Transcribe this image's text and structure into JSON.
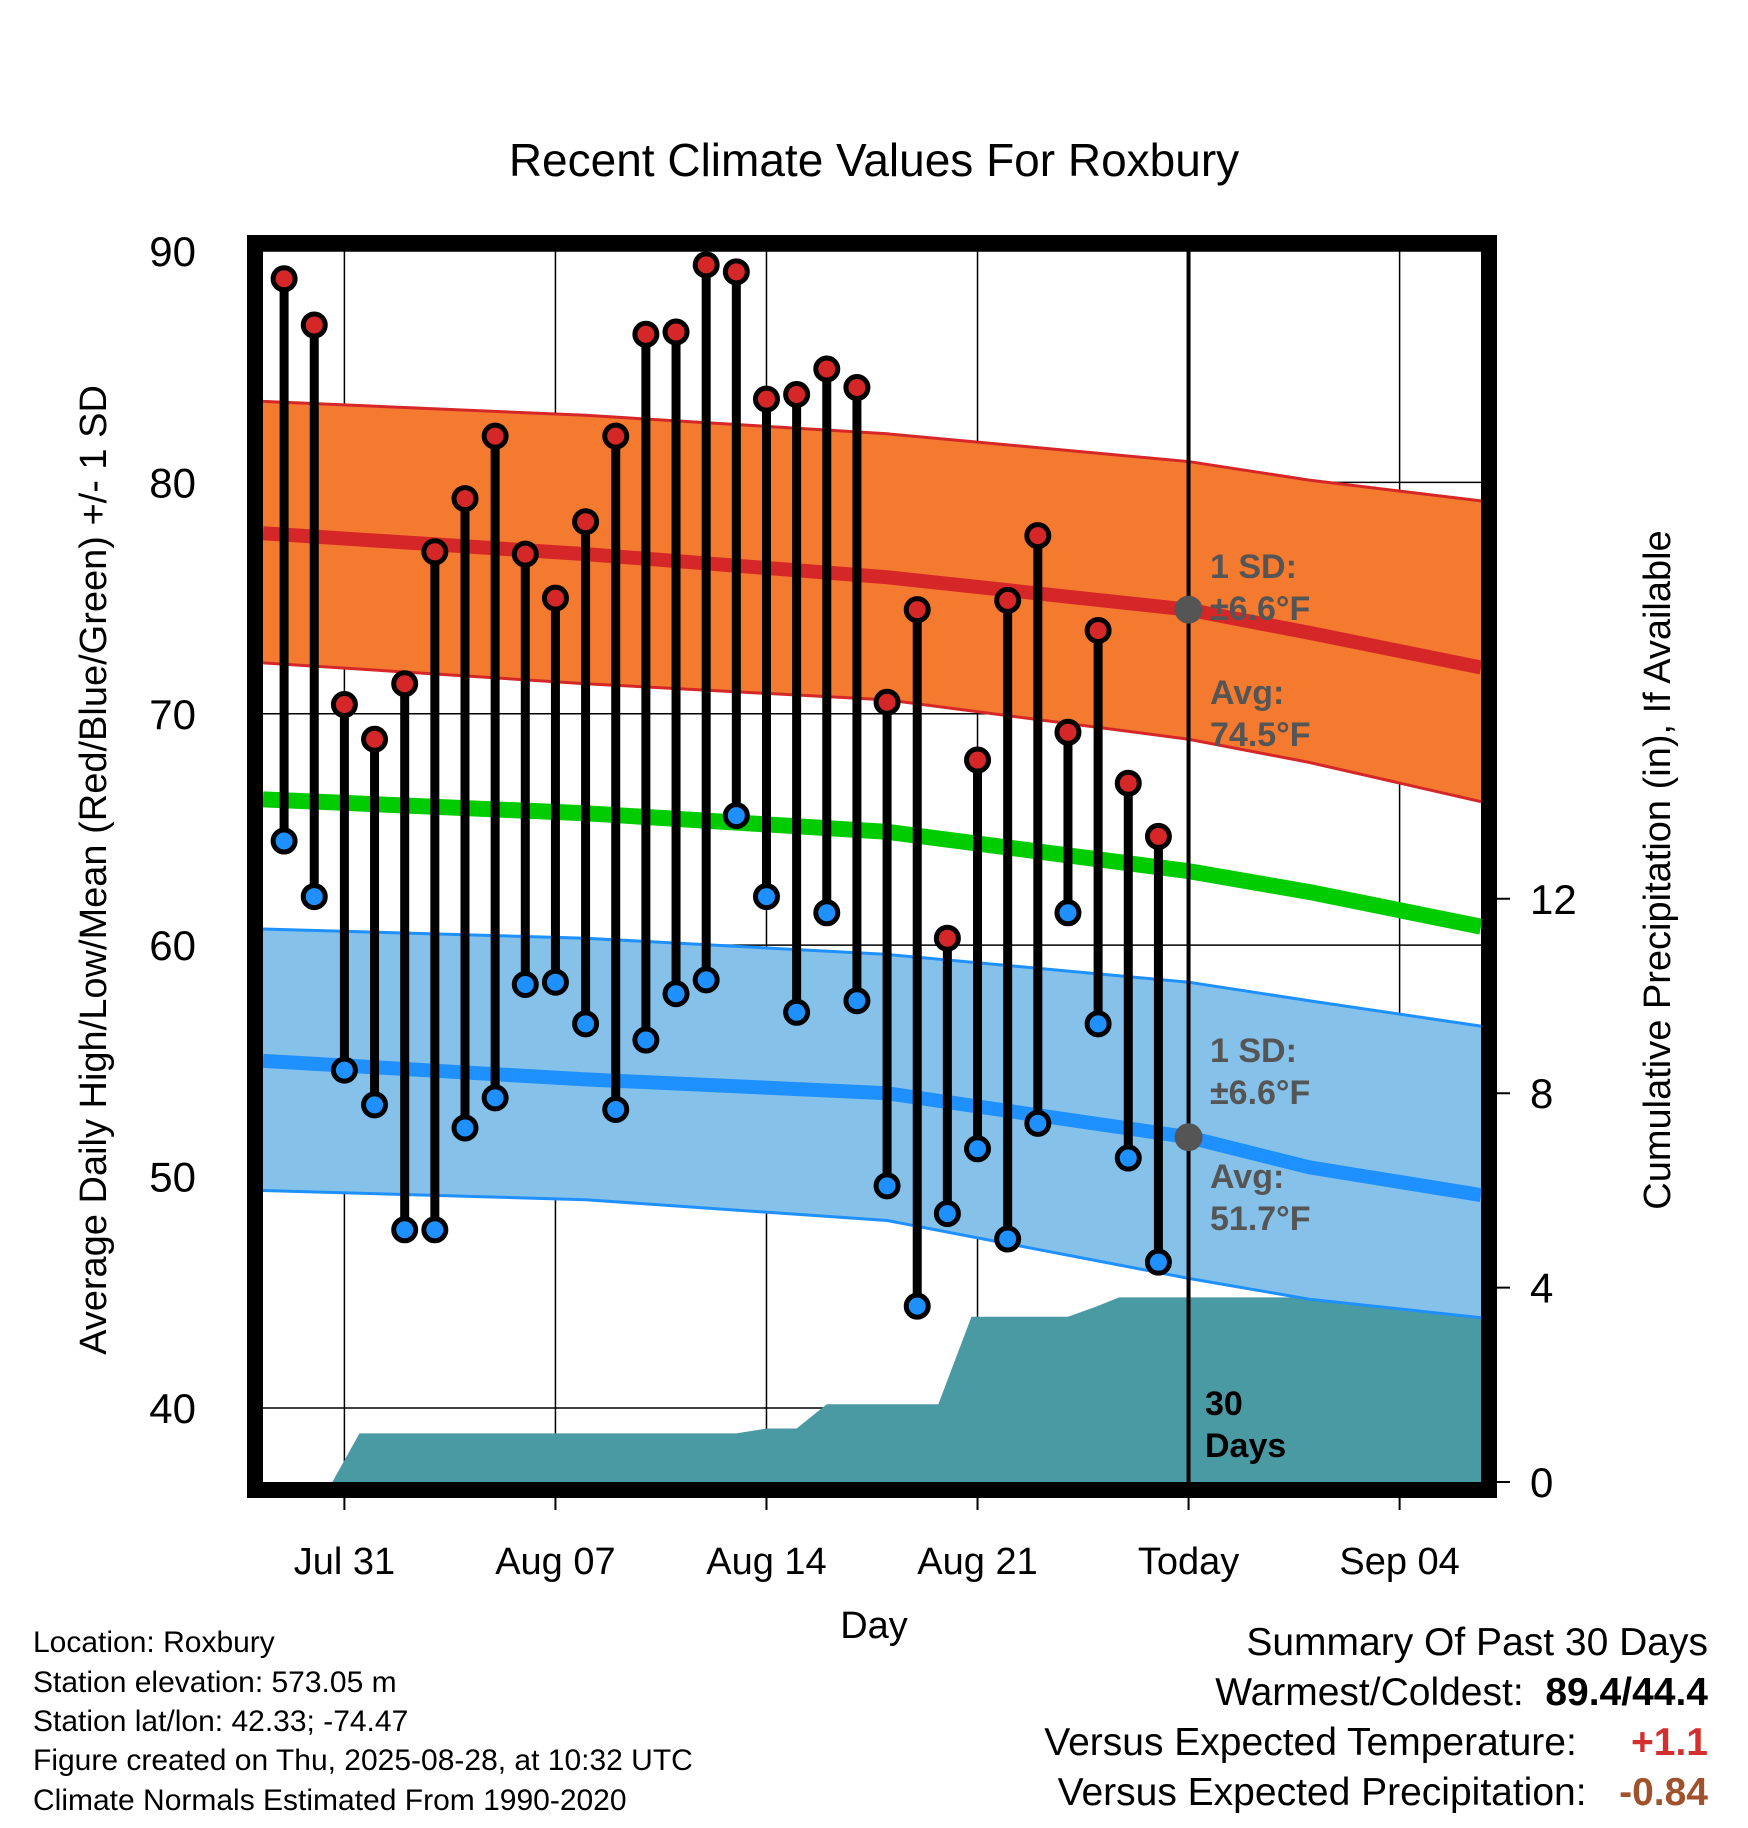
{
  "chart_data": {
    "type": "line",
    "title": "Recent Climate Values For Roxbury",
    "xlabel": "Day",
    "ylabel": "Average Daily High/Low/Mean (Red/Blue/Green) +/- 1 SD",
    "y2label": "Cumulative Precipitation (in), If Available",
    "ylim": [
      36.8,
      90
    ],
    "y_ticks": [
      40,
      50,
      60,
      70,
      80,
      90
    ],
    "y2lim": [
      0,
      14
    ],
    "y2_ticks": [
      0,
      4,
      8,
      12
    ],
    "x_ticks": [
      {
        "day": 2,
        "label": "Jul 31"
      },
      {
        "day": 9,
        "label": "Aug 07"
      },
      {
        "day": 16,
        "label": "Aug 14"
      },
      {
        "day": 23,
        "label": "Aug 21"
      },
      {
        "day": 30,
        "label": "Today"
      },
      {
        "day": 37,
        "label": "Sep 04"
      }
    ],
    "x_range": [
      -0.7,
      39.7
    ],
    "today_day": 30,
    "today_label": [
      "30",
      "Days"
    ],
    "daily_days": [
      0,
      1,
      2,
      3,
      4,
      5,
      6,
      7,
      8,
      9,
      10,
      11,
      12,
      13,
      14,
      15,
      16,
      17,
      18,
      19,
      20,
      21,
      22,
      23,
      24,
      25,
      26,
      27,
      28,
      29
    ],
    "highs": [
      88.8,
      86.8,
      70.4,
      68.9,
      71.3,
      77.0,
      79.3,
      82.0,
      76.9,
      75.0,
      78.3,
      82.0,
      86.4,
      86.5,
      89.4,
      89.1,
      83.6,
      83.8,
      84.9,
      84.1,
      70.5,
      74.5,
      60.3,
      68.0,
      74.9,
      77.7,
      69.2,
      73.6,
      67.0,
      64.7
    ],
    "lows": [
      64.5,
      62.1,
      54.6,
      53.1,
      47.7,
      47.7,
      52.1,
      53.4,
      58.3,
      58.4,
      56.6,
      52.9,
      55.9,
      57.9,
      58.5,
      65.6,
      62.1,
      57.1,
      61.4,
      57.6,
      49.6,
      44.4,
      48.4,
      51.2,
      47.3,
      52.3,
      61.4,
      56.6,
      50.8,
      46.3
    ],
    "normal_high": {
      "days": [
        -0.7,
        10,
        20,
        30,
        34,
        39.7
      ],
      "values": [
        77.8,
        76.9,
        75.9,
        74.5,
        73.5,
        72.0
      ]
    },
    "normal_high_sd_upper": {
      "days": [
        -0.7,
        10,
        20,
        30,
        34,
        39.7
      ],
      "values": [
        83.5,
        82.9,
        82.1,
        80.9,
        80.1,
        79.2
      ]
    },
    "normal_high_sd_lower": {
      "days": [
        -0.7,
        10,
        20,
        30,
        34,
        39.7
      ],
      "values": [
        72.2,
        71.3,
        70.6,
        68.9,
        67.9,
        66.2
      ]
    },
    "normal_mean": {
      "days": [
        -0.7,
        10,
        20,
        30,
        34,
        39.7
      ],
      "values": [
        66.3,
        65.7,
        64.9,
        63.2,
        62.3,
        60.8
      ]
    },
    "normal_low": {
      "days": [
        -0.7,
        10,
        20,
        30,
        34,
        39.7
      ],
      "values": [
        55.0,
        54.2,
        53.6,
        51.7,
        50.4,
        49.2
      ]
    },
    "normal_low_sd_upper": {
      "days": [
        -0.7,
        10,
        20,
        30,
        34,
        39.7
      ],
      "values": [
        60.7,
        60.3,
        59.6,
        58.4,
        57.6,
        56.5
      ]
    },
    "normal_low_sd_lower": {
      "days": [
        -0.7,
        10,
        20,
        30,
        34,
        39.7
      ],
      "values": [
        49.4,
        49.0,
        48.1,
        45.6,
        44.7,
        43.9
      ]
    },
    "precip_cumulative": {
      "days": [
        1.6,
        2.5,
        15.0,
        16.0,
        17.0,
        18.0,
        19.0,
        20.0,
        21.0,
        21.7,
        22.8,
        26.0,
        26.9,
        27.7,
        39.7
      ],
      "values": [
        0.0,
        1.0,
        1.0,
        1.1,
        1.1,
        1.6,
        1.6,
        1.6,
        1.6,
        1.6,
        3.4,
        3.4,
        3.6,
        3.8,
        3.8
      ]
    },
    "high_sd_label": [
      "1 SD:",
      "±6.6°F"
    ],
    "high_avg_label": [
      "Avg:",
      "74.5°F"
    ],
    "low_sd_label": [
      "1 SD:",
      "±6.6°F"
    ],
    "low_avg_label": [
      "Avg:",
      "51.7°F"
    ],
    "colors": {
      "high_band": "#f47a30",
      "high_line": "#d62728",
      "low_band": "#85c1e9",
      "low_line": "#1e90ff",
      "mean_line": "#00cc00",
      "precip_fill": "#4a9aa4",
      "high_dot": "#d62728",
      "low_dot": "#1e90ff",
      "today_dot": "#555555"
    }
  },
  "info": {
    "location": "Location: Roxbury",
    "elevation": "Station elevation: 573.05 m",
    "latlon": "Station lat/lon: 42.33; -74.47",
    "created": "Figure created on Thu, 2025-08-28, at 10:32 UTC",
    "normals": "Climate Normals Estimated From 1990-2020"
  },
  "summary": {
    "title": "Summary Of Past 30 Days",
    "warm_cold_label": "Warmest/Coldest:",
    "warm_cold_value": "89.4/44.4",
    "temp_label": "Versus Expected Temperature:",
    "temp_value": "+1.1",
    "precip_label": "Versus Expected Precipitation:",
    "precip_value": "-0.84"
  }
}
